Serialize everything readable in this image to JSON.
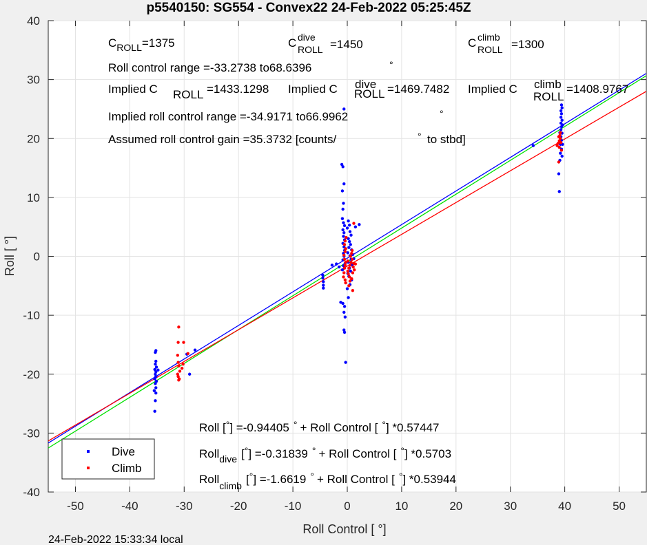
{
  "chart_data": {
    "type": "scatter",
    "title": "p5540150: SG554 - Convex22 24-Feb-2022 05:25:45Z",
    "xlabel": "Roll Control [   °]",
    "ylabel": "Roll [  °]",
    "xlim": [
      -55,
      55
    ],
    "ylim": [
      -40,
      40
    ],
    "xticks": [
      -50,
      -40,
      -30,
      -20,
      -10,
      0,
      10,
      20,
      30,
      40,
      50
    ],
    "yticks": [
      -40,
      -30,
      -20,
      -10,
      0,
      10,
      20,
      30,
      40
    ],
    "grid": true,
    "legend_position": "bottom-left",
    "series": [
      {
        "name": "Dive",
        "color": "#0000ff",
        "points": [
          [
            -35.4,
            -26.3
          ],
          [
            -35.3,
            -24.5
          ],
          [
            -35.2,
            -23.2
          ],
          [
            -35.5,
            -22.8
          ],
          [
            -35.2,
            -22.3
          ],
          [
            -35.3,
            -21.6
          ],
          [
            -35.1,
            -21.2
          ],
          [
            -35.4,
            -20.8
          ],
          [
            -35.2,
            -20.4
          ],
          [
            -35.3,
            -20.0
          ],
          [
            -35.2,
            -19.6
          ],
          [
            -35.4,
            -19.2
          ],
          [
            -35.1,
            -18.8
          ],
          [
            -35.3,
            -18.3
          ],
          [
            -35.2,
            -17.8
          ],
          [
            -35.3,
            -16.3
          ],
          [
            -35.2,
            -16.0
          ],
          [
            -34.8,
            -19.3
          ],
          [
            -29.0,
            -20.0
          ],
          [
            -29.5,
            -16.6
          ],
          [
            -28.0,
            -15.9
          ],
          [
            -4.5,
            -3.2
          ],
          [
            -4.5,
            -3.7
          ],
          [
            -4.4,
            -4.3
          ],
          [
            -4.4,
            -4.9
          ],
          [
            -4.4,
            -5.4
          ],
          [
            -2.8,
            -1.5
          ],
          [
            -2.0,
            -1.3
          ],
          [
            -1.5,
            -1.8
          ],
          [
            -1.2,
            -7.8
          ],
          [
            -0.8,
            -8.0
          ],
          [
            -0.5,
            -8.5
          ],
          [
            -0.6,
            -9.5
          ],
          [
            -0.4,
            -10.3
          ],
          [
            -0.6,
            -12.5
          ],
          [
            -0.5,
            -12.9
          ],
          [
            -0.3,
            -18.0
          ],
          [
            -0.6,
            25.0
          ],
          [
            -1.0,
            15.6
          ],
          [
            -0.8,
            15.2
          ],
          [
            -0.6,
            12.3
          ],
          [
            -0.9,
            11.1
          ],
          [
            -0.7,
            9.0
          ],
          [
            -0.8,
            8.0
          ],
          [
            -0.9,
            6.4
          ],
          [
            -0.7,
            5.7
          ],
          [
            -0.5,
            5.2
          ],
          [
            -0.8,
            4.5
          ],
          [
            -0.6,
            4.0
          ],
          [
            -0.7,
            3.4
          ],
          [
            -0.5,
            2.8
          ],
          [
            -0.8,
            2.2
          ],
          [
            -0.6,
            1.6
          ],
          [
            -0.5,
            1.0
          ],
          [
            -0.7,
            0.5
          ],
          [
            -0.6,
            0.0
          ],
          [
            -0.8,
            -0.6
          ],
          [
            -0.4,
            -1.2
          ],
          [
            -0.7,
            -1.6
          ],
          [
            -0.5,
            -2.0
          ],
          [
            -0.9,
            -2.3
          ],
          [
            0.2,
            -7.0
          ],
          [
            0.0,
            -5.5
          ],
          [
            0.5,
            -4.8
          ],
          [
            0.8,
            -4.0
          ],
          [
            0.3,
            -3.4
          ],
          [
            0.1,
            -2.9
          ],
          [
            0.6,
            -2.5
          ],
          [
            0.4,
            -2.0
          ],
          [
            0.9,
            -1.5
          ],
          [
            0.2,
            -1.0
          ],
          [
            0.7,
            -0.5
          ],
          [
            0.5,
            0.1
          ],
          [
            0.1,
            0.6
          ],
          [
            0.8,
            1.1
          ],
          [
            0.3,
            1.5
          ],
          [
            0.6,
            2.0
          ],
          [
            0.4,
            2.5
          ],
          [
            0.2,
            3.0
          ],
          [
            0.7,
            3.6
          ],
          [
            0.5,
            4.2
          ],
          [
            0.0,
            4.8
          ],
          [
            0.4,
            5.3
          ],
          [
            0.2,
            6.0
          ],
          [
            1.5,
            5.0
          ],
          [
            2.2,
            5.4
          ],
          [
            1.0,
            0.3
          ],
          [
            1.2,
            -0.4
          ],
          [
            34.2,
            18.8
          ],
          [
            39.0,
            11.0
          ],
          [
            38.9,
            14.0
          ],
          [
            39.1,
            16.3
          ],
          [
            39.2,
            17.5
          ],
          [
            39.4,
            18.2
          ],
          [
            39.2,
            19.0
          ],
          [
            39.4,
            19.7
          ],
          [
            39.3,
            20.3
          ],
          [
            39.5,
            20.9
          ],
          [
            39.3,
            21.5
          ],
          [
            39.4,
            22.0
          ],
          [
            39.3,
            22.6
          ],
          [
            39.5,
            23.1
          ],
          [
            39.3,
            23.6
          ],
          [
            39.4,
            24.2
          ],
          [
            39.3,
            24.7
          ],
          [
            39.5,
            25.2
          ],
          [
            39.4,
            25.7
          ],
          [
            39.1,
            21.0
          ],
          [
            39.6,
            22.3
          ],
          [
            39.6,
            19.0
          ],
          [
            39.5,
            17.0
          ]
        ]
      },
      {
        "name": "Climb",
        "color": "#ff0000",
        "points": [
          [
            -31.0,
            -12.0
          ],
          [
            -31.1,
            -14.6
          ],
          [
            -30.1,
            -14.6
          ],
          [
            -31.2,
            -16.8
          ],
          [
            -31.1,
            -18.0
          ],
          [
            -31.0,
            -18.6
          ],
          [
            -30.8,
            -19.5
          ],
          [
            -31.2,
            -20.0
          ],
          [
            -31.1,
            -20.4
          ],
          [
            -30.9,
            -20.8
          ],
          [
            -31.0,
            -21.0
          ],
          [
            -30.2,
            -18.3
          ],
          [
            -29.3,
            -16.5
          ],
          [
            -30.4,
            -19.0
          ],
          [
            -0.7,
            -3.5
          ],
          [
            -0.6,
            -2.8
          ],
          [
            -0.5,
            -2.0
          ],
          [
            -0.4,
            -1.5
          ],
          [
            -0.3,
            -1.0
          ],
          [
            -0.5,
            -0.5
          ],
          [
            -0.6,
            0.2
          ],
          [
            -0.4,
            0.8
          ],
          [
            -0.3,
            1.3
          ],
          [
            -0.5,
            2.0
          ],
          [
            -0.4,
            2.6
          ],
          [
            -0.2,
            3.2
          ],
          [
            -0.4,
            -4.0
          ],
          [
            -0.3,
            -4.5
          ],
          [
            0.1,
            -2.5
          ],
          [
            0.3,
            -2.0
          ],
          [
            0.5,
            -1.5
          ],
          [
            0.7,
            -1.0
          ],
          [
            0.9,
            -0.5
          ],
          [
            1.1,
            -1.8
          ],
          [
            1.3,
            -2.3
          ],
          [
            0.2,
            -3.0
          ],
          [
            0.4,
            -3.5
          ],
          [
            0.6,
            0.0
          ],
          [
            0.8,
            0.5
          ],
          [
            1.0,
            -2.8
          ],
          [
            1.2,
            -1.2
          ],
          [
            0.3,
            -5.0
          ],
          [
            0.1,
            -0.8
          ],
          [
            0.5,
            -4.2
          ],
          [
            0.8,
            -3.8
          ],
          [
            1.0,
            -5.8
          ],
          [
            1.2,
            5.6
          ],
          [
            1.5,
            -1.3
          ],
          [
            0.9,
            1.0
          ],
          [
            38.6,
            18.8
          ],
          [
            38.8,
            19.2
          ],
          [
            39.0,
            19.6
          ],
          [
            39.2,
            20.0
          ],
          [
            38.9,
            20.3
          ],
          [
            39.1,
            20.5
          ],
          [
            39.3,
            19.3
          ],
          [
            39.0,
            18.5
          ],
          [
            39.2,
            21.0
          ],
          [
            38.9,
            16.0
          ],
          [
            39.4,
            18.0
          ]
        ]
      }
    ],
    "fit_lines": [
      {
        "name": "Dive fit",
        "color": "#0000ff",
        "intercept": -0.31839,
        "slope": 0.5703
      },
      {
        "name": "All fit",
        "color": "#00e000",
        "intercept": -0.94405,
        "slope": 0.57447
      },
      {
        "name": "Climb fit",
        "color": "#ff0000",
        "intercept": -1.6619,
        "slope": 0.53944
      }
    ],
    "annotations": {
      "c_roll": {
        "base": "C",
        "sub": "ROLL",
        "value": "=1375"
      },
      "c_roll_dive": {
        "base": "C",
        "sup": "dive",
        "sub": "ROLL",
        "value": "=1450"
      },
      "c_roll_climb": {
        "base": "C",
        "sup": "climb",
        "sub": "ROLL",
        "value": "=1300"
      },
      "roll_control_range": {
        "text": "Roll control range =-33.2738 to68.6396",
        "unit": "°"
      },
      "implied_c_roll": {
        "text1": "Implied C",
        "sub": "ROLL",
        "value": "=1433.1298"
      },
      "implied_c_roll_dive": {
        "text1": "Implied C",
        "sup": "dive",
        "sub": "ROLL",
        "value": "=1469.7482"
      },
      "implied_c_roll_climb": {
        "text1": "Implied C",
        "sup": "climb",
        "sub": "ROLL",
        "value": "=1408.9767"
      },
      "implied_range": {
        "text": "Implied roll control range =-34.9171 to66.9962",
        "unit": "°"
      },
      "gain": {
        "text": "Assumed roll control gain =35.3732 [counts/",
        "unit": "°",
        "tail": "to stbd]"
      },
      "eq_all": {
        "p1": "Roll [",
        "u1": "°",
        "p2": "] =-0.94405",
        "u2": "°",
        "p3": "+ Roll Control [",
        "u3": "°",
        "p4": "] *0.57447"
      },
      "eq_dive": {
        "p1": "Roll",
        "sub": "dive",
        "p1b": "[",
        "u1": "°",
        "p2": "] =-0.31839",
        "u2": "°",
        "p3": "+ Roll Control [",
        "u3": "°",
        "p4": "] *0.5703"
      },
      "eq_climb": {
        "p1": "Roll",
        "sub": "climb",
        "p1b": "[",
        "u1": "°",
        "p2": "] =-1.6619",
        "u2": "°",
        "p3": "+ Roll Control [",
        "u3": "°",
        "p4": "] *0.53944"
      }
    }
  },
  "footer": "24-Feb-2022 15:33:34 local"
}
